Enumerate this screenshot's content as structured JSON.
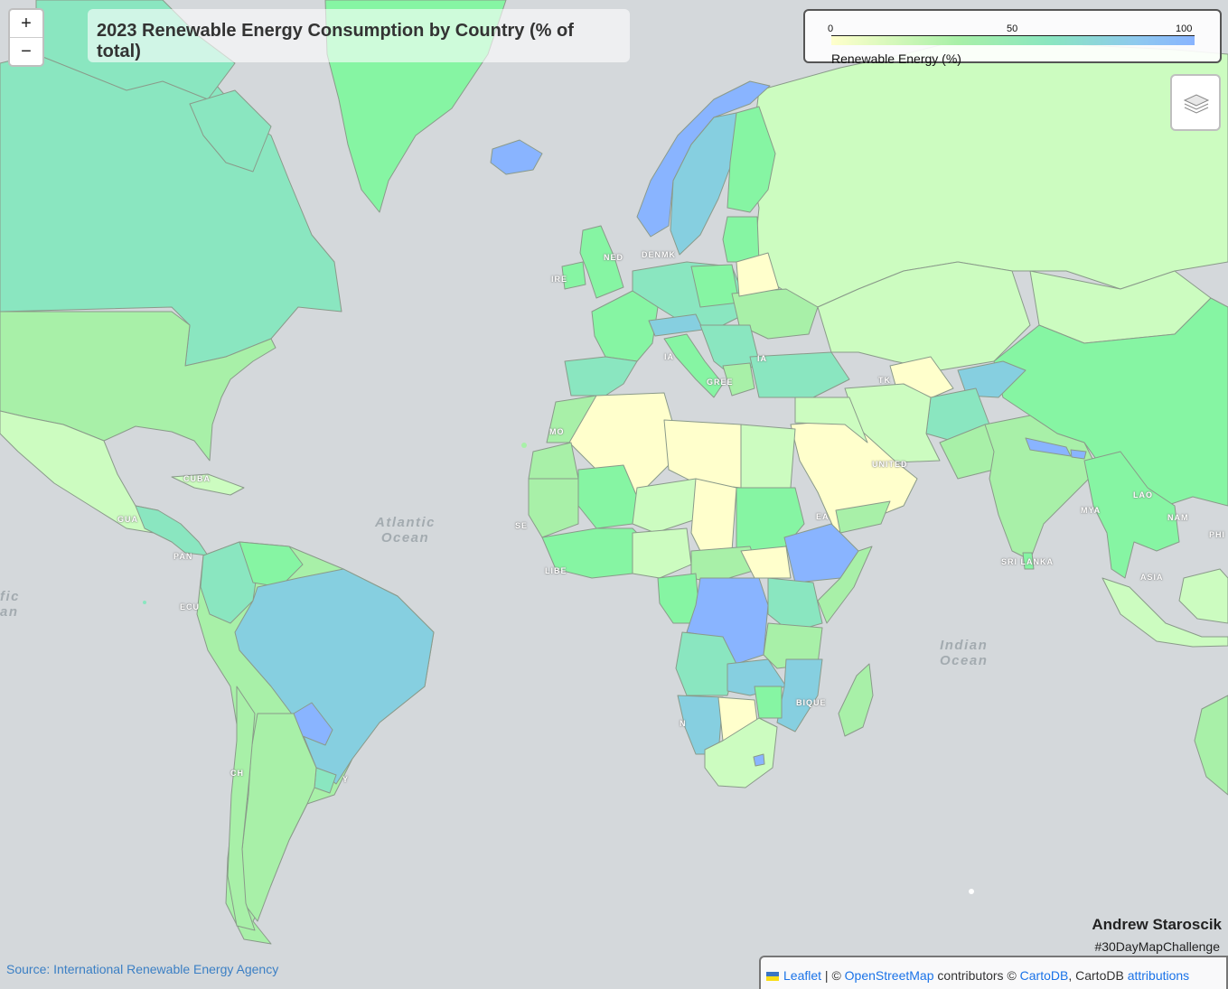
{
  "title": "2023 Renewable Energy Consumption by Country (% of total)",
  "zoom": {
    "in_label": "+",
    "out_label": "−"
  },
  "legend": {
    "caption": "Renewable Energy (%)",
    "ticks": [
      "0",
      "50",
      "100"
    ],
    "range": [
      0,
      100
    ],
    "colors": [
      "#ffffcc",
      "#a8f0a8",
      "#8ae6c0",
      "#8ec8f0",
      "#89b4ff"
    ]
  },
  "layers_control": {
    "icon": "layers-icon"
  },
  "ocean_labels": {
    "atlantic": [
      "Atlantic",
      "Ocean"
    ],
    "indian": [
      "Indian",
      "Ocean"
    ],
    "pacific": [
      "fic",
      "an"
    ]
  },
  "place_labels": {
    "ire": "IRE",
    "ned": "NED",
    "denmk": "DENMK",
    "ia1": "IA",
    "ia2": "IA",
    "greece": "GREE",
    "tk": "TK",
    "united": "UNITED",
    "ea": "EA",
    "mo": "MO",
    "se": "SE",
    "libe": "LIBE",
    "cuba": "CUBA",
    "gua": "GUA",
    "pan": "PAN",
    "ecu": "ECU",
    "ch": "CH",
    "y": "Y",
    "n": "N",
    "bique": "BIQUE",
    "sri_lanka": "SRI LANKA",
    "lao": "LAO",
    "nam": "NAM",
    "mya": "MYA",
    "phi": "PHI",
    "asia": "ASIA"
  },
  "credits": {
    "author": "Andrew Staroscik",
    "hashtag": "#30DayMapChallenge",
    "source": "Source: International Renewable Energy Agency"
  },
  "attribution": {
    "leaflet": "Leaflet",
    "sep": " | © ",
    "osm": "OpenStreetMap",
    "contrib": " contributors © ",
    "cartodb": "CartoDB",
    "comma": ", CartoDB ",
    "attributions": "attributions"
  },
  "map_fill_colors": {
    "low": "#ffffcc",
    "lowmid": "#ccfcc0",
    "mid": "#a8f0a8",
    "midhigh": "#86f5a3",
    "high": "#8ae6c0",
    "vhigh": "#86cfe0",
    "top": "#89b4ff"
  }
}
